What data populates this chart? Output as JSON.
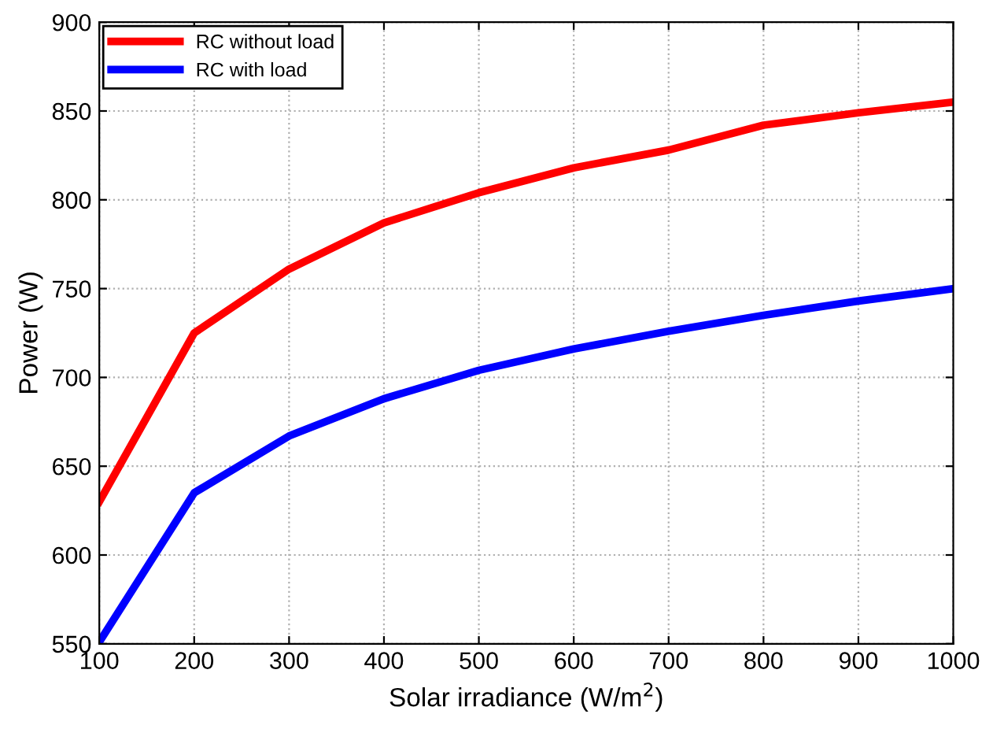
{
  "chart_data": {
    "type": "line",
    "xlabel": "Solar irradiance (W/m$^{2}$)",
    "ylabel": "Power (W)",
    "x": [
      100,
      200,
      300,
      400,
      500,
      600,
      700,
      800,
      900,
      1000
    ],
    "series": [
      {
        "name": "RC without load",
        "color": "#ff0000",
        "values": [
          630,
          725,
          761,
          787,
          804,
          818,
          828,
          842,
          849,
          855
        ]
      },
      {
        "name": "RC with load",
        "color": "#0000ff",
        "values": [
          551,
          635,
          667,
          688,
          704,
          716,
          726,
          735,
          743,
          750
        ]
      }
    ],
    "xlim": [
      100,
      1000
    ],
    "ylim": [
      550,
      900
    ],
    "xticks": [
      100,
      200,
      300,
      400,
      500,
      600,
      700,
      800,
      900,
      1000
    ],
    "yticks": [
      550,
      600,
      650,
      700,
      750,
      800,
      850,
      900
    ],
    "grid": true,
    "legend": "top left",
    "marker": "none",
    "line_style": "solid"
  }
}
